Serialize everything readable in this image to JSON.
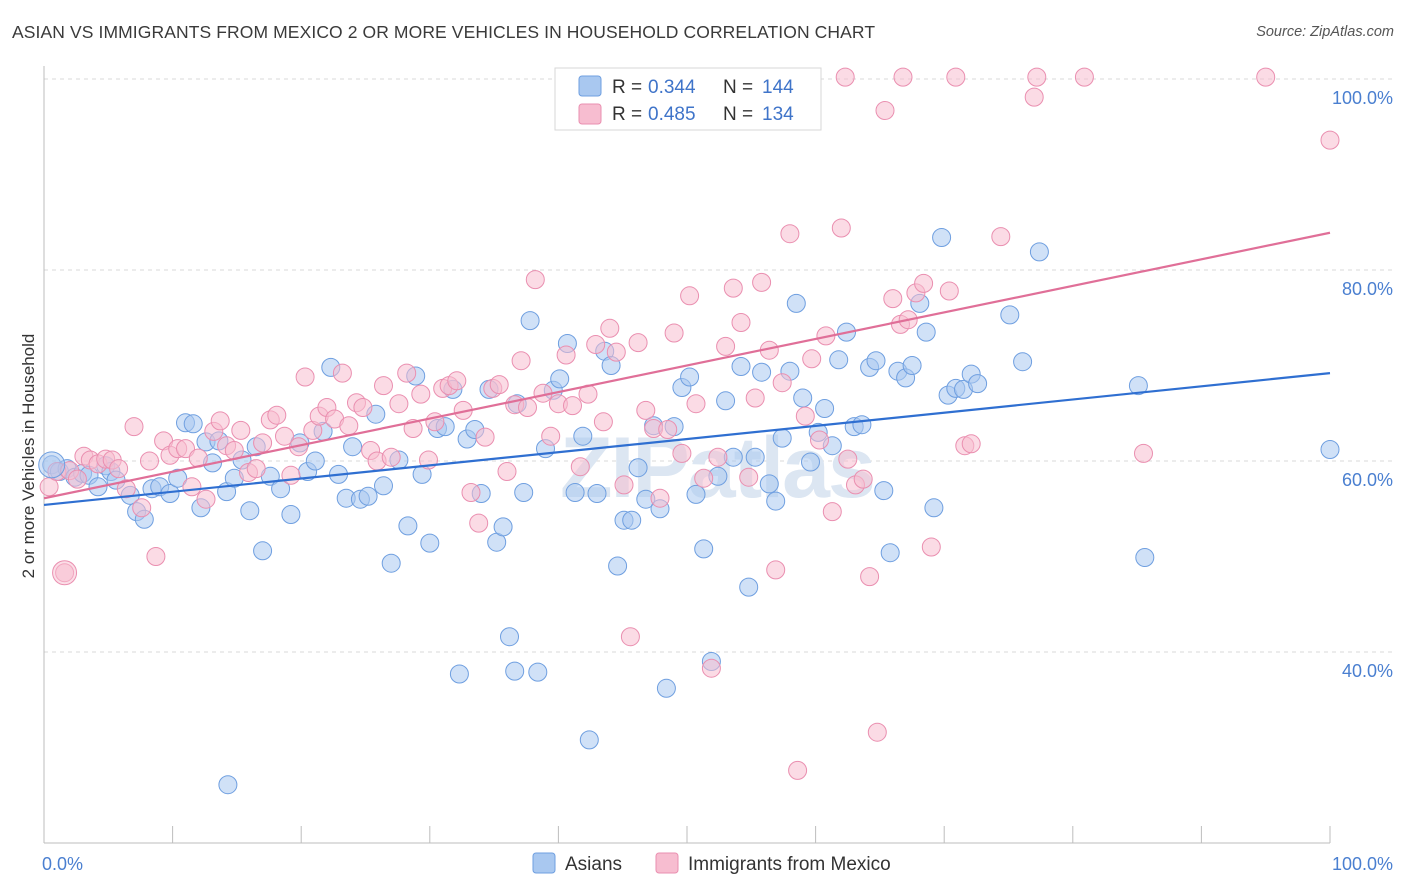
{
  "title": "ASIAN VS IMMIGRANTS FROM MEXICO 2 OR MORE VEHICLES IN HOUSEHOLD CORRELATION CHART",
  "source": "Source: ZipAtlas.com",
  "watermark": "ZIPatlas",
  "colors": {
    "asian_fill": "#a9c8f0",
    "asian_stroke": "#6f9fe0",
    "asian_line": "#2f6fd1",
    "mexico_fill": "#f7bdd0",
    "mexico_stroke": "#ea8fb0",
    "mexico_line": "#e06f98",
    "grid": "#d8d8d8",
    "tick_label": "#4a7fd0"
  },
  "legend": {
    "rows": [
      {
        "r_label": "R =",
        "r_value": "0.344",
        "n_label": "N =",
        "n_value": "144"
      },
      {
        "r_label": "R =",
        "r_value": "0.485",
        "n_label": "N =",
        "n_value": "134"
      }
    ]
  },
  "chart_data": {
    "type": "scatter",
    "xlabel": "",
    "ylabel": "2 or more Vehicles in Household",
    "xlim": [
      0,
      100
    ],
    "ylim": [
      20,
      102
    ],
    "x_tick_labels": [
      "0.0%",
      "100.0%"
    ],
    "y_ticks": [
      40,
      60,
      80,
      100
    ],
    "y_tick_labels": [
      "40.0%",
      "60.0%",
      "80.0%",
      "100.0%"
    ],
    "grid": true,
    "legend_position": "top-center",
    "series": [
      {
        "name": "Asians",
        "r": 0.344,
        "n": 144,
        "trend": {
          "x": [
            0,
            100
          ],
          "y": [
            55.4,
            69.2
          ]
        },
        "points": [
          [
            0.6,
            59.6
          ],
          [
            1.2,
            58.9
          ],
          [
            1.8,
            59.2
          ],
          [
            2.4,
            58.3
          ],
          [
            3.0,
            58.7
          ],
          [
            3.5,
            58.5
          ],
          [
            4.2,
            57.3
          ],
          [
            4.8,
            59.5
          ],
          [
            5.2,
            58.9
          ],
          [
            5.6,
            58.0
          ],
          [
            6.7,
            56.4
          ],
          [
            7.2,
            54.7
          ],
          [
            7.8,
            53.9
          ],
          [
            8.4,
            57.1
          ],
          [
            9.0,
            57.3
          ],
          [
            9.8,
            56.6
          ],
          [
            10.4,
            58.2
          ],
          [
            11.0,
            64.0
          ],
          [
            11.6,
            63.9
          ],
          [
            12.2,
            55.1
          ],
          [
            12.6,
            62.0
          ],
          [
            13.1,
            59.8
          ],
          [
            13.6,
            62.1
          ],
          [
            14.2,
            56.8
          ],
          [
            14.8,
            58.2
          ],
          [
            15.4,
            60.1
          ],
          [
            16.0,
            54.8
          ],
          [
            16.5,
            61.5
          ],
          [
            17.0,
            50.6
          ],
          [
            17.6,
            58.4
          ],
          [
            18.4,
            57.1
          ],
          [
            19.2,
            54.4
          ],
          [
            19.9,
            61.9
          ],
          [
            20.5,
            58.9
          ],
          [
            21.1,
            60.0
          ],
          [
            21.7,
            63.1
          ],
          [
            22.3,
            69.8
          ],
          [
            22.9,
            58.6
          ],
          [
            23.5,
            56.1
          ],
          [
            24.0,
            61.5
          ],
          [
            24.6,
            56.0
          ],
          [
            25.2,
            56.3
          ],
          [
            25.8,
            64.9
          ],
          [
            26.4,
            57.4
          ],
          [
            27.0,
            49.3
          ],
          [
            27.6,
            60.1
          ],
          [
            28.3,
            53.2
          ],
          [
            28.9,
            68.9
          ],
          [
            29.4,
            58.6
          ],
          [
            30.0,
            51.4
          ],
          [
            30.6,
            63.4
          ],
          [
            31.2,
            63.6
          ],
          [
            31.8,
            67.5
          ],
          [
            32.3,
            37.7
          ],
          [
            32.9,
            62.3
          ],
          [
            33.5,
            63.3
          ],
          [
            34.0,
            56.6
          ],
          [
            34.6,
            67.5
          ],
          [
            35.2,
            51.5
          ],
          [
            35.7,
            53.1
          ],
          [
            36.2,
            41.6
          ],
          [
            36.8,
            66.0
          ],
          [
            37.3,
            56.7
          ],
          [
            37.8,
            74.7
          ],
          [
            38.4,
            37.9
          ],
          [
            39.0,
            61.3
          ],
          [
            39.6,
            67.4
          ],
          [
            40.1,
            68.6
          ],
          [
            40.7,
            72.3
          ],
          [
            41.3,
            56.7
          ],
          [
            41.9,
            62.6
          ],
          [
            42.4,
            30.8
          ],
          [
            43.0,
            56.6
          ],
          [
            43.6,
            71.5
          ],
          [
            44.1,
            70.0
          ],
          [
            44.6,
            49.0
          ],
          [
            45.1,
            53.8
          ],
          [
            45.7,
            53.8
          ],
          [
            46.2,
            59.3
          ],
          [
            46.8,
            56.0
          ],
          [
            47.4,
            63.7
          ],
          [
            47.9,
            55.0
          ],
          [
            48.4,
            36.2
          ],
          [
            49.0,
            63.6
          ],
          [
            49.6,
            67.7
          ],
          [
            50.2,
            68.8
          ],
          [
            50.7,
            56.5
          ],
          [
            51.3,
            50.8
          ],
          [
            51.9,
            39.0
          ],
          [
            52.4,
            58.4
          ],
          [
            53.0,
            66.3
          ],
          [
            53.6,
            60.4
          ],
          [
            54.2,
            69.9
          ],
          [
            54.8,
            46.8
          ],
          [
            55.3,
            60.4
          ],
          [
            55.8,
            69.3
          ],
          [
            56.4,
            57.6
          ],
          [
            56.9,
            55.8
          ],
          [
            57.4,
            62.4
          ],
          [
            58.0,
            69.4
          ],
          [
            58.5,
            76.5
          ],
          [
            59.0,
            66.6
          ],
          [
            59.6,
            59.9
          ],
          [
            60.2,
            63.0
          ],
          [
            60.7,
            65.5
          ],
          [
            61.3,
            61.6
          ],
          [
            61.8,
            70.6
          ],
          [
            62.4,
            73.5
          ],
          [
            63.0,
            63.6
          ],
          [
            63.6,
            63.8
          ],
          [
            64.2,
            69.8
          ],
          [
            64.7,
            70.5
          ],
          [
            65.3,
            56.9
          ],
          [
            65.8,
            50.4
          ],
          [
            66.4,
            69.4
          ],
          [
            67.0,
            68.7
          ],
          [
            67.5,
            70.0
          ],
          [
            68.1,
            76.5
          ],
          [
            68.6,
            73.5
          ],
          [
            69.2,
            55.1
          ],
          [
            69.8,
            83.4
          ],
          [
            70.3,
            66.9
          ],
          [
            70.9,
            67.6
          ],
          [
            71.5,
            67.5
          ],
          [
            72.1,
            69.1
          ],
          [
            72.6,
            68.1
          ],
          [
            75.1,
            75.3
          ],
          [
            76.1,
            70.4
          ],
          [
            77.4,
            81.9
          ],
          [
            85.1,
            67.9
          ],
          [
            85.6,
            49.9
          ],
          [
            100.0,
            61.2
          ],
          [
            14.3,
            26.1
          ],
          [
            36.6,
            38.0
          ]
        ]
      },
      {
        "name": "Immigrants from Mexico",
        "r": 0.485,
        "n": 134,
        "trend": {
          "x": [
            0,
            100
          ],
          "y": [
            56.1,
            83.9
          ]
        },
        "points": [
          [
            0.4,
            57.3
          ],
          [
            1.0,
            58.9
          ],
          [
            1.6,
            48.3
          ],
          [
            2.0,
            59.0
          ],
          [
            2.6,
            58.1
          ],
          [
            3.1,
            60.5
          ],
          [
            3.6,
            60.1
          ],
          [
            4.2,
            59.7
          ],
          [
            4.8,
            60.2
          ],
          [
            5.3,
            60.1
          ],
          [
            5.8,
            59.2
          ],
          [
            6.4,
            57.1
          ],
          [
            7.0,
            63.6
          ],
          [
            7.6,
            55.1
          ],
          [
            8.2,
            60.0
          ],
          [
            8.7,
            50.0
          ],
          [
            9.3,
            62.1
          ],
          [
            9.8,
            60.6
          ],
          [
            10.4,
            61.3
          ],
          [
            11.0,
            61.3
          ],
          [
            11.5,
            57.3
          ],
          [
            12.0,
            60.3
          ],
          [
            12.6,
            56.0
          ],
          [
            13.2,
            63.1
          ],
          [
            13.7,
            64.2
          ],
          [
            14.2,
            61.6
          ],
          [
            14.8,
            61.1
          ],
          [
            15.3,
            63.2
          ],
          [
            15.9,
            58.8
          ],
          [
            16.5,
            59.2
          ],
          [
            17.0,
            61.9
          ],
          [
            17.6,
            64.3
          ],
          [
            18.1,
            64.8
          ],
          [
            18.7,
            62.6
          ],
          [
            19.2,
            58.5
          ],
          [
            19.8,
            61.5
          ],
          [
            20.3,
            68.8
          ],
          [
            20.9,
            63.2
          ],
          [
            21.4,
            64.7
          ],
          [
            22.0,
            65.6
          ],
          [
            22.6,
            64.4
          ],
          [
            23.2,
            69.2
          ],
          [
            23.7,
            63.7
          ],
          [
            24.3,
            66.1
          ],
          [
            24.8,
            65.6
          ],
          [
            25.4,
            61.1
          ],
          [
            25.9,
            60.0
          ],
          [
            26.4,
            67.9
          ],
          [
            27.0,
            60.4
          ],
          [
            27.6,
            66.0
          ],
          [
            28.2,
            69.2
          ],
          [
            28.7,
            63.4
          ],
          [
            29.3,
            67.0
          ],
          [
            29.9,
            60.1
          ],
          [
            30.4,
            64.1
          ],
          [
            31.0,
            67.6
          ],
          [
            31.5,
            67.9
          ],
          [
            32.1,
            68.4
          ],
          [
            32.6,
            65.3
          ],
          [
            33.2,
            56.7
          ],
          [
            33.8,
            53.5
          ],
          [
            34.3,
            62.5
          ],
          [
            34.9,
            67.6
          ],
          [
            35.4,
            68.0
          ],
          [
            36.0,
            58.9
          ],
          [
            36.6,
            65.9
          ],
          [
            37.1,
            70.5
          ],
          [
            37.6,
            65.6
          ],
          [
            38.2,
            79.0
          ],
          [
            38.8,
            67.1
          ],
          [
            39.4,
            62.6
          ],
          [
            40.0,
            66.0
          ],
          [
            40.6,
            71.1
          ],
          [
            41.1,
            65.8
          ],
          [
            41.7,
            59.4
          ],
          [
            42.3,
            67.0
          ],
          [
            42.9,
            72.2
          ],
          [
            43.5,
            64.1
          ],
          [
            44.0,
            73.9
          ],
          [
            44.5,
            71.4
          ],
          [
            45.1,
            57.5
          ],
          [
            45.6,
            41.6
          ],
          [
            46.2,
            72.4
          ],
          [
            46.8,
            65.3
          ],
          [
            47.4,
            63.4
          ],
          [
            47.9,
            56.1
          ],
          [
            48.5,
            63.3
          ],
          [
            49.0,
            73.4
          ],
          [
            49.6,
            60.8
          ],
          [
            50.2,
            77.3
          ],
          [
            50.7,
            66.0
          ],
          [
            51.3,
            58.2
          ],
          [
            51.9,
            38.3
          ],
          [
            52.4,
            60.4
          ],
          [
            53.0,
            72.0
          ],
          [
            53.6,
            78.1
          ],
          [
            54.2,
            74.5
          ],
          [
            54.8,
            58.3
          ],
          [
            55.3,
            66.6
          ],
          [
            55.8,
            78.7
          ],
          [
            56.4,
            71.6
          ],
          [
            56.9,
            48.6
          ],
          [
            57.4,
            68.2
          ],
          [
            58.0,
            83.8
          ],
          [
            58.6,
            27.6
          ],
          [
            59.2,
            64.7
          ],
          [
            59.7,
            70.7
          ],
          [
            60.3,
            62.2
          ],
          [
            60.8,
            73.1
          ],
          [
            61.3,
            54.7
          ],
          [
            62.0,
            84.4
          ],
          [
            62.5,
            60.2
          ],
          [
            63.1,
            57.5
          ],
          [
            63.7,
            58.1
          ],
          [
            64.2,
            47.9
          ],
          [
            64.8,
            31.6
          ],
          [
            65.4,
            96.7
          ],
          [
            66.0,
            77.0
          ],
          [
            66.6,
            74.3
          ],
          [
            67.2,
            74.8
          ],
          [
            67.8,
            77.6
          ],
          [
            68.4,
            78.6
          ],
          [
            69.0,
            51.0
          ],
          [
            70.4,
            77.8
          ],
          [
            71.6,
            61.6
          ],
          [
            72.1,
            61.8
          ],
          [
            74.4,
            83.5
          ],
          [
            77.0,
            98.1
          ],
          [
            85.5,
            60.8
          ],
          [
            100.0,
            93.6
          ],
          [
            56.9,
            100.2
          ],
          [
            62.3,
            100.2
          ],
          [
            66.8,
            100.2
          ],
          [
            70.9,
            100.2
          ],
          [
            77.2,
            100.2
          ],
          [
            80.9,
            100.2
          ],
          [
            95.0,
            100.2
          ],
          [
            45.3,
            100.2
          ]
        ]
      }
    ]
  },
  "bottom_legend": [
    {
      "label": "Asians"
    },
    {
      "label": "Immigrants from Mexico"
    }
  ]
}
